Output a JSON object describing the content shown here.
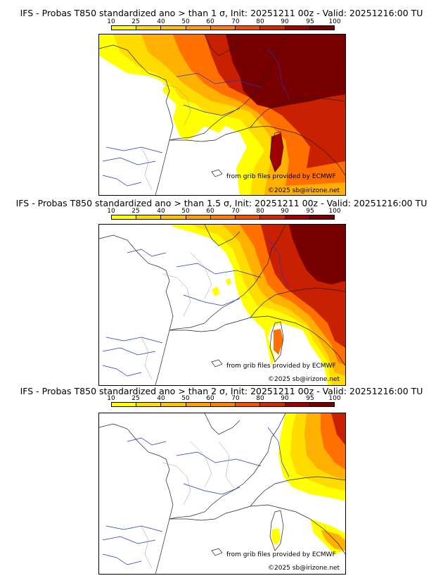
{
  "panels": [
    {
      "title": "IFS - Probas T850  standardized ano > than 1 σ, Init: 20251211 00z - Valid: 20251216:00 TU",
      "credit_source": "from grib files provided by ECMWF",
      "credit_copyright": "©2025 sb@irizone.net"
    },
    {
      "title": "IFS - Probas T850  standardized ano > than 1.5 σ, Init: 20251211 00z - Valid: 20251216:00 TU",
      "credit_source": "from grib files provided by ECMWF",
      "credit_copyright": "©2025 sb@irizone.net"
    },
    {
      "title": "IFS - Probas T850  standardized ano > than 2 σ, Init: 20251211 00z - Valid: 20251216:00 TU",
      "credit_source": "from grib files provided by ECMWF",
      "credit_copyright": "©2025 sb@irizone.net"
    }
  ],
  "colorbar": {
    "labels": [
      "10",
      "25",
      "40",
      "50",
      "60",
      "70",
      "80",
      "90",
      "95",
      "100"
    ],
    "colors": [
      "#ffff00",
      "#ffdc00",
      "#ffc000",
      "#ffa000",
      "#ff8000",
      "#f05000",
      "#d02800",
      "#a00000",
      "#780000"
    ]
  }
}
